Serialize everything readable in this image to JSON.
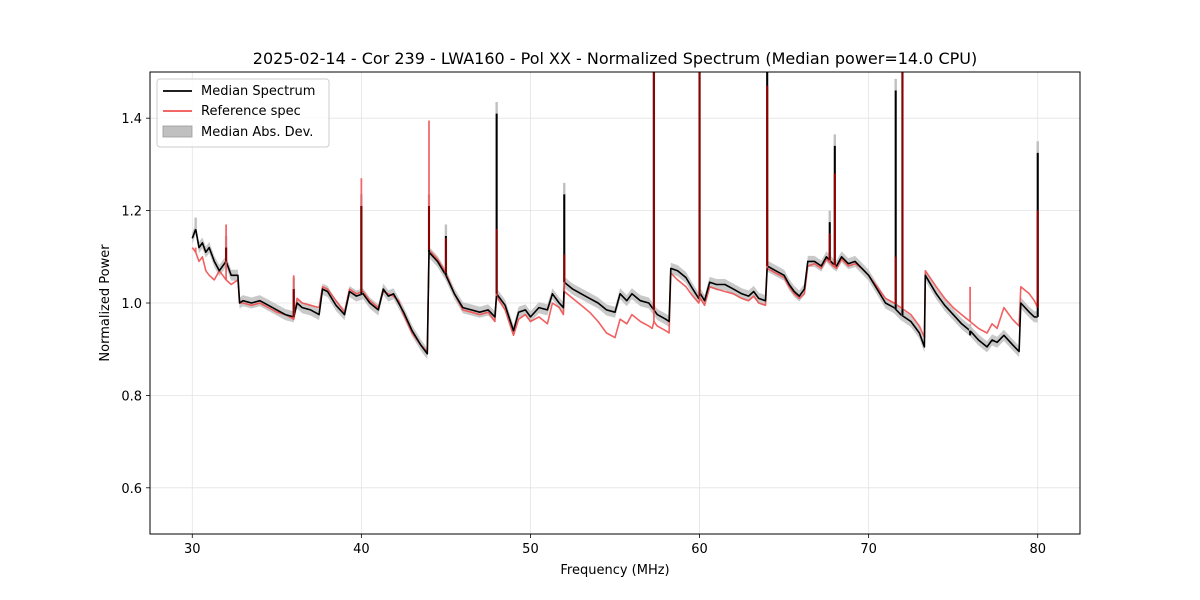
{
  "chart_data": {
    "type": "line",
    "title": "2025-02-14 - Cor 239 - LWA160 - Pol XX - Normalized Spectrum (Median power=14.0 CPU)",
    "xlabel": "Frequency (MHz)",
    "ylabel": "Normalized Power",
    "xlim": [
      27.5,
      82.5
    ],
    "ylim": [
      0.5,
      1.5
    ],
    "xticks": [
      30,
      40,
      50,
      60,
      70,
      80
    ],
    "yticks": [
      0.6,
      0.8,
      1.0,
      1.2,
      1.4
    ],
    "grid": true,
    "legend": {
      "placement": "top-left",
      "entries": [
        "Median Spectrum",
        "Reference spec",
        "Median Abs. Dev."
      ]
    },
    "colors": {
      "median": "#000000",
      "reference": "#f05050",
      "mad": "#c0c0c0",
      "spike": "#8b0000"
    },
    "mad_width": 0.012,
    "series": [
      {
        "name": "Median Spectrum",
        "points": [
          [
            30.0,
            1.14
          ],
          [
            30.2,
            1.16
          ],
          [
            30.4,
            1.12
          ],
          [
            30.6,
            1.13
          ],
          [
            30.8,
            1.11
          ],
          [
            31.0,
            1.12
          ],
          [
            31.3,
            1.09
          ],
          [
            31.6,
            1.07
          ],
          [
            32.0,
            1.09
          ],
          [
            32.3,
            1.06
          ],
          [
            32.7,
            1.06
          ],
          [
            32.8,
            1.0
          ],
          [
            33.0,
            1.005
          ],
          [
            33.5,
            1.0
          ],
          [
            34.0,
            1.005
          ],
          [
            34.5,
            0.995
          ],
          [
            35.0,
            0.985
          ],
          [
            35.5,
            0.975
          ],
          [
            36.0,
            0.97
          ],
          [
            36.2,
            1.0
          ],
          [
            36.5,
            0.99
          ],
          [
            37.0,
            0.985
          ],
          [
            37.5,
            0.975
          ],
          [
            37.7,
            1.03
          ],
          [
            38.0,
            1.025
          ],
          [
            38.5,
            0.995
          ],
          [
            39.0,
            0.975
          ],
          [
            39.3,
            1.025
          ],
          [
            39.7,
            1.015
          ],
          [
            40.1,
            1.02
          ],
          [
            40.5,
            1.0
          ],
          [
            41.0,
            0.985
          ],
          [
            41.3,
            1.03
          ],
          [
            41.6,
            1.015
          ],
          [
            41.9,
            1.02
          ],
          [
            42.2,
            1.0
          ],
          [
            42.5,
            0.98
          ],
          [
            43.0,
            0.94
          ],
          [
            43.5,
            0.91
          ],
          [
            43.9,
            0.89
          ],
          [
            44.0,
            1.11
          ],
          [
            44.5,
            1.09
          ],
          [
            45.0,
            1.06
          ],
          [
            45.5,
            1.02
          ],
          [
            46.0,
            0.99
          ],
          [
            46.5,
            0.985
          ],
          [
            47.0,
            0.98
          ],
          [
            47.5,
            0.985
          ],
          [
            47.9,
            0.97
          ],
          [
            48.0,
            1.02
          ],
          [
            48.5,
            0.995
          ],
          [
            49.0,
            0.94
          ],
          [
            49.3,
            0.98
          ],
          [
            49.7,
            0.985
          ],
          [
            50.0,
            0.97
          ],
          [
            50.5,
            0.99
          ],
          [
            51.0,
            0.985
          ],
          [
            51.3,
            1.02
          ],
          [
            51.7,
            1.0
          ],
          [
            51.95,
            0.99
          ],
          [
            52.0,
            1.045
          ],
          [
            52.5,
            1.03
          ],
          [
            53.0,
            1.02
          ],
          [
            53.5,
            1.01
          ],
          [
            54.0,
            1.0
          ],
          [
            54.5,
            0.985
          ],
          [
            55.0,
            0.98
          ],
          [
            55.3,
            1.02
          ],
          [
            55.7,
            1.005
          ],
          [
            56.0,
            1.02
          ],
          [
            56.5,
            1.005
          ],
          [
            57.0,
            1.0
          ],
          [
            57.2,
            0.99
          ],
          [
            57.3,
            0.985
          ],
          [
            57.5,
            0.975
          ],
          [
            58.0,
            0.965
          ],
          [
            58.2,
            0.96
          ],
          [
            58.3,
            1.075
          ],
          [
            58.7,
            1.07
          ],
          [
            59.2,
            1.055
          ],
          [
            59.6,
            1.03
          ],
          [
            59.95,
            1.01
          ],
          [
            60.05,
            1.02
          ],
          [
            60.3,
            1.005
          ],
          [
            60.6,
            1.045
          ],
          [
            61.0,
            1.04
          ],
          [
            61.5,
            1.04
          ],
          [
            62.0,
            1.03
          ],
          [
            62.5,
            1.02
          ],
          [
            62.9,
            1.015
          ],
          [
            63.2,
            1.025
          ],
          [
            63.5,
            1.01
          ],
          [
            63.9,
            1.005
          ],
          [
            64.0,
            1.08
          ],
          [
            64.5,
            1.07
          ],
          [
            65.0,
            1.06
          ],
          [
            65.3,
            1.04
          ],
          [
            65.6,
            1.025
          ],
          [
            65.9,
            1.015
          ],
          [
            66.2,
            1.03
          ],
          [
            66.4,
            1.09
          ],
          [
            66.8,
            1.09
          ],
          [
            67.2,
            1.08
          ],
          [
            67.5,
            1.1
          ],
          [
            67.9,
            1.085
          ],
          [
            68.1,
            1.08
          ],
          [
            68.4,
            1.1
          ],
          [
            68.8,
            1.085
          ],
          [
            69.2,
            1.09
          ],
          [
            69.6,
            1.075
          ],
          [
            70.0,
            1.06
          ],
          [
            70.5,
            1.03
          ],
          [
            71.0,
            1.0
          ],
          [
            71.5,
            0.99
          ],
          [
            71.9,
            0.975
          ],
          [
            72.1,
            0.97
          ],
          [
            72.5,
            0.96
          ],
          [
            73.0,
            0.935
          ],
          [
            73.3,
            0.905
          ],
          [
            73.35,
            1.06
          ],
          [
            74.0,
            1.02
          ],
          [
            74.5,
            0.995
          ],
          [
            75.0,
            0.975
          ],
          [
            75.5,
            0.955
          ],
          [
            76.0,
            0.94
          ],
          [
            76.5,
            0.92
          ],
          [
            77.0,
            0.905
          ],
          [
            77.3,
            0.92
          ],
          [
            77.6,
            0.915
          ],
          [
            78.0,
            0.93
          ],
          [
            78.5,
            0.91
          ],
          [
            78.9,
            0.895
          ],
          [
            79.0,
            1.0
          ],
          [
            79.5,
            0.98
          ],
          [
            79.8,
            0.97
          ],
          [
            80.0,
            0.97
          ]
        ]
      },
      {
        "name": "Reference spec",
        "points": [
          [
            30.0,
            1.12
          ],
          [
            30.2,
            1.11
          ],
          [
            30.4,
            1.09
          ],
          [
            30.6,
            1.1
          ],
          [
            30.8,
            1.07
          ],
          [
            31.0,
            1.06
          ],
          [
            31.3,
            1.05
          ],
          [
            31.6,
            1.07
          ],
          [
            32.0,
            1.05
          ],
          [
            32.3,
            1.04
          ],
          [
            32.7,
            1.05
          ],
          [
            32.8,
            1.0
          ],
          [
            33.0,
            1.0
          ],
          [
            33.5,
            0.995
          ],
          [
            34.0,
            1.0
          ],
          [
            34.5,
            0.99
          ],
          [
            35.0,
            0.98
          ],
          [
            35.5,
            0.975
          ],
          [
            36.0,
            0.965
          ],
          [
            36.2,
            1.01
          ],
          [
            36.5,
            1.0
          ],
          [
            37.0,
            0.995
          ],
          [
            37.5,
            0.99
          ],
          [
            37.7,
            1.035
          ],
          [
            38.0,
            1.03
          ],
          [
            38.5,
            1.005
          ],
          [
            39.0,
            0.98
          ],
          [
            39.3,
            1.03
          ],
          [
            39.7,
            1.02
          ],
          [
            40.1,
            1.025
          ],
          [
            40.5,
            1.005
          ],
          [
            41.0,
            0.99
          ],
          [
            41.3,
            1.025
          ],
          [
            41.6,
            1.02
          ],
          [
            41.9,
            1.015
          ],
          [
            42.2,
            1.005
          ],
          [
            42.5,
            0.975
          ],
          [
            43.0,
            0.935
          ],
          [
            43.5,
            0.91
          ],
          [
            43.9,
            0.895
          ],
          [
            44.0,
            1.115
          ],
          [
            44.5,
            1.095
          ],
          [
            45.0,
            1.065
          ],
          [
            45.5,
            1.02
          ],
          [
            46.0,
            0.985
          ],
          [
            46.5,
            0.98
          ],
          [
            47.0,
            0.975
          ],
          [
            47.5,
            0.98
          ],
          [
            47.9,
            0.96
          ],
          [
            48.0,
            1.015
          ],
          [
            48.5,
            0.985
          ],
          [
            49.0,
            0.93
          ],
          [
            49.3,
            0.965
          ],
          [
            49.7,
            0.975
          ],
          [
            50.0,
            0.96
          ],
          [
            50.5,
            0.97
          ],
          [
            51.0,
            0.955
          ],
          [
            51.3,
            1.0
          ],
          [
            51.7,
            0.99
          ],
          [
            51.95,
            0.975
          ],
          [
            52.0,
            1.025
          ],
          [
            52.5,
            1.01
          ],
          [
            53.0,
            0.995
          ],
          [
            53.5,
            0.98
          ],
          [
            54.0,
            0.96
          ],
          [
            54.5,
            0.935
          ],
          [
            55.0,
            0.925
          ],
          [
            55.3,
            0.965
          ],
          [
            55.7,
            0.955
          ],
          [
            56.0,
            0.975
          ],
          [
            56.5,
            0.96
          ],
          [
            57.0,
            0.95
          ],
          [
            57.2,
            0.945
          ],
          [
            57.3,
            0.96
          ],
          [
            57.5,
            0.95
          ],
          [
            58.0,
            0.94
          ],
          [
            58.2,
            0.935
          ],
          [
            58.3,
            1.065
          ],
          [
            58.7,
            1.05
          ],
          [
            59.2,
            1.035
          ],
          [
            59.6,
            1.015
          ],
          [
            59.95,
            1.0
          ],
          [
            60.05,
            1.01
          ],
          [
            60.3,
            0.995
          ],
          [
            60.6,
            1.035
          ],
          [
            61.0,
            1.03
          ],
          [
            61.5,
            1.025
          ],
          [
            62.0,
            1.02
          ],
          [
            62.5,
            1.01
          ],
          [
            62.9,
            1.005
          ],
          [
            63.2,
            1.015
          ],
          [
            63.5,
            1.0
          ],
          [
            63.9,
            0.995
          ],
          [
            64.0,
            1.075
          ],
          [
            64.5,
            1.065
          ],
          [
            65.0,
            1.055
          ],
          [
            65.3,
            1.035
          ],
          [
            65.6,
            1.02
          ],
          [
            65.9,
            1.01
          ],
          [
            66.2,
            1.02
          ],
          [
            66.4,
            1.08
          ],
          [
            66.8,
            1.085
          ],
          [
            67.2,
            1.075
          ],
          [
            67.5,
            1.095
          ],
          [
            67.9,
            1.08
          ],
          [
            68.1,
            1.075
          ],
          [
            68.4,
            1.095
          ],
          [
            68.8,
            1.08
          ],
          [
            69.2,
            1.085
          ],
          [
            69.6,
            1.075
          ],
          [
            70.0,
            1.06
          ],
          [
            70.5,
            1.035
          ],
          [
            71.0,
            1.01
          ],
          [
            71.5,
            1.0
          ],
          [
            71.9,
            0.99
          ],
          [
            72.1,
            0.985
          ],
          [
            72.5,
            0.975
          ],
          [
            73.0,
            0.95
          ],
          [
            73.3,
            0.925
          ],
          [
            73.35,
            1.07
          ],
          [
            74.0,
            1.035
          ],
          [
            74.5,
            1.01
          ],
          [
            75.0,
            0.99
          ],
          [
            75.5,
            0.975
          ],
          [
            76.0,
            0.96
          ],
          [
            76.5,
            0.945
          ],
          [
            77.0,
            0.935
          ],
          [
            77.3,
            0.955
          ],
          [
            77.6,
            0.945
          ],
          [
            78.0,
            0.99
          ],
          [
            78.5,
            0.965
          ],
          [
            78.9,
            0.95
          ],
          [
            79.0,
            1.035
          ],
          [
            79.5,
            1.02
          ],
          [
            79.8,
            1.005
          ],
          [
            80.0,
            0.99
          ]
        ]
      }
    ],
    "spikes": [
      {
        "x": 30.2,
        "median": 1.16,
        "reference": 1.12
      },
      {
        "x": 32.0,
        "median": 1.12,
        "reference": 1.17
      },
      {
        "x": 36.0,
        "median": 1.03,
        "reference": 1.06
      },
      {
        "x": 40.0,
        "median": 1.21,
        "reference": 1.27
      },
      {
        "x": 44.0,
        "median": 1.21,
        "reference": 1.395
      },
      {
        "x": 45.0,
        "median": 1.145,
        "reference": 1.14
      },
      {
        "x": 48.0,
        "median": 1.41,
        "reference": 1.16
      },
      {
        "x": 52.0,
        "median": 1.235,
        "reference": 1.105
      },
      {
        "x": 57.3,
        "median": 1.5,
        "reference": 1.5
      },
      {
        "x": 60.0,
        "median": 1.5,
        "reference": 1.5
      },
      {
        "x": 64.0,
        "median": 1.5,
        "reference": 1.47
      },
      {
        "x": 67.7,
        "median": 1.175,
        "reference": 1.15
      },
      {
        "x": 68.0,
        "median": 1.34,
        "reference": 1.28
      },
      {
        "x": 71.6,
        "median": 1.46,
        "reference": 1.1
      },
      {
        "x": 72.0,
        "median": 1.5,
        "reference": 1.5
      },
      {
        "x": 76.0,
        "median": 0.93,
        "reference": 1.035
      },
      {
        "x": 80.0,
        "median": 1.325,
        "reference": 1.2
      }
    ]
  }
}
